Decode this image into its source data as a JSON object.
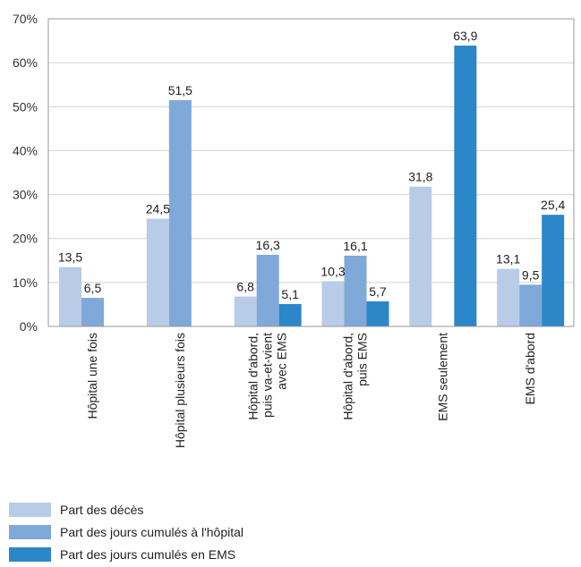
{
  "chart_data": {
    "type": "bar",
    "categories": [
      [
        "Hôpital une fois"
      ],
      [
        "Hôpital plusieurs fois"
      ],
      [
        "Hôpital d'abord,",
        "puis va-et-vient",
        "avec EMS"
      ],
      [
        "Hôpital d'abord,",
        "puis EMS"
      ],
      [
        "EMS seulement"
      ],
      [
        "EMS d'abord"
      ]
    ],
    "series": [
      {
        "name": "Part des décès",
        "color": "#b8cce8",
        "values": [
          13.5,
          24.5,
          6.8,
          10.3,
          31.8,
          13.1
        ],
        "labels": [
          "13,5",
          "24,5",
          "6,8",
          "10,3",
          "31,8",
          "13,1"
        ]
      },
      {
        "name": "Part des jours cumulés à l'hôpital",
        "color": "#7fa9d8",
        "values": [
          6.5,
          51.5,
          16.3,
          16.1,
          null,
          9.5
        ],
        "labels": [
          "6,5",
          "51,5",
          "16,3",
          "16,1",
          "",
          "9,5"
        ]
      },
      {
        "name": "Part des jours cumulés en EMS",
        "color": "#2b87c8",
        "values": [
          null,
          null,
          5.1,
          5.7,
          63.9,
          25.4
        ],
        "labels": [
          "",
          "",
          "5,1",
          "5,7",
          "63,9",
          "25,4"
        ]
      }
    ],
    "ylim": [
      0,
      70
    ],
    "yticks": [
      "0%",
      "10%",
      "20%",
      "30%",
      "40%",
      "50%",
      "60%",
      "70%"
    ],
    "grid": true,
    "legend_position": "bottom-left"
  }
}
